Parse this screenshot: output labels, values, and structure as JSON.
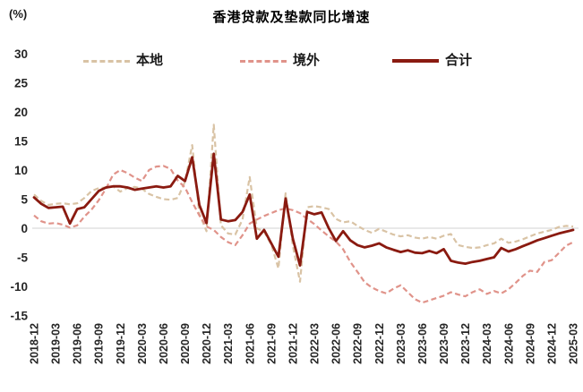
{
  "chart_data": {
    "type": "line",
    "title": "香港贷款及垫款同比增速",
    "unit_label": "(%)",
    "xlabel": "",
    "ylabel": "",
    "ylim": [
      -15,
      30
    ],
    "yticks": [
      30,
      25,
      20,
      15,
      10,
      5,
      0,
      -5,
      -10,
      -15
    ],
    "grid": "zero-line-only",
    "legend_position": "top",
    "months_per_tick": 3,
    "x_tick_labels": [
      "2018-12",
      "2019-03",
      "2019-06",
      "2019-09",
      "2019-12",
      "2020-03",
      "2020-06",
      "2020-09",
      "2020-12",
      "2021-03",
      "2021-06",
      "2021-09",
      "2021-12",
      "2022-03",
      "2022-06",
      "2022-09",
      "2022-12",
      "2023-03",
      "2023-06",
      "2023-09",
      "2023-12",
      "2024-03",
      "2024-06",
      "2024-09",
      "2024-12",
      "2025-03"
    ],
    "series": [
      {
        "name": "本地",
        "style": "dashed",
        "color": "#d9c3a5",
        "values": [
          5.8,
          4.7,
          4.0,
          4.2,
          4.3,
          4.1,
          4.3,
          5.2,
          6.4,
          6.9,
          7.0,
          7.2,
          6.3,
          6.9,
          7.1,
          6.8,
          5.9,
          5.4,
          5.0,
          4.9,
          5.2,
          8.0,
          14.3,
          2.5,
          -0.5,
          17.8,
          0.5,
          -0.9,
          -1.1,
          1.5,
          8.8,
          0.0,
          -0.6,
          -2.8,
          -6.9,
          6.0,
          -3.0,
          -9.2,
          3.6,
          3.8,
          3.6,
          3.3,
          1.6,
          1.0,
          1.2,
          0.4,
          -0.3,
          -0.8,
          -0.1,
          -0.6,
          -1.1,
          -1.4,
          -1.2,
          -1.6,
          -1.8,
          -1.5,
          -1.8,
          -1.3,
          -1.0,
          -2.9,
          -3.2,
          -3.4,
          -3.3,
          -2.9,
          -2.6,
          -1.8,
          -2.5,
          -2.3,
          -1.9,
          -1.4,
          -0.9,
          -0.6,
          -0.3,
          0.2,
          0.4,
          0.3
        ]
      },
      {
        "name": "境外",
        "style": "dashed",
        "color": "#e0938a",
        "values": [
          2.2,
          1.2,
          0.8,
          0.9,
          0.6,
          0.1,
          0.5,
          2.0,
          3.2,
          4.8,
          6.8,
          9.2,
          10.0,
          9.5,
          8.7,
          8.1,
          10.0,
          10.6,
          10.7,
          10.2,
          8.2,
          7.0,
          4.5,
          2.2,
          0.3,
          -0.3,
          -1.5,
          -2.4,
          -2.9,
          -1.2,
          0.8,
          1.5,
          2.1,
          2.6,
          3.1,
          3.4,
          3.1,
          2.6,
          1.6,
          0.7,
          -0.4,
          -1.4,
          -2.3,
          -3.6,
          -5.8,
          -7.5,
          -9.3,
          -10.2,
          -10.8,
          -11.2,
          -10.4,
          -9.8,
          -11.0,
          -12.2,
          -12.8,
          -12.4,
          -12.0,
          -11.6,
          -11.0,
          -11.4,
          -11.7,
          -11.0,
          -10.5,
          -11.3,
          -10.8,
          -11.2,
          -10.5,
          -9.4,
          -8.2,
          -7.3,
          -7.5,
          -5.8,
          -5.5,
          -4.3,
          -3.0,
          -2.4
        ]
      },
      {
        "name": "合计",
        "style": "solid",
        "color": "#8a1a10",
        "values": [
          5.3,
          4.2,
          3.5,
          3.6,
          3.7,
          0.8,
          3.3,
          3.6,
          5.0,
          6.4,
          7.0,
          7.2,
          7.2,
          7.0,
          6.6,
          6.8,
          7.0,
          7.2,
          7.0,
          7.2,
          9.0,
          8.1,
          12.2,
          4.0,
          0.9,
          12.8,
          1.5,
          1.2,
          1.4,
          2.8,
          5.8,
          -1.8,
          -0.3,
          -2.6,
          -4.9,
          5.1,
          -1.8,
          -6.4,
          2.8,
          2.4,
          2.7,
          0.0,
          -2.2,
          -0.5,
          -2.1,
          -2.9,
          -3.3,
          -3.0,
          -2.6,
          -3.3,
          -3.7,
          -4.1,
          -3.8,
          -4.2,
          -4.3,
          -3.9,
          -4.3,
          -3.6,
          -5.6,
          -5.9,
          -6.1,
          -5.8,
          -5.6,
          -5.3,
          -5.0,
          -3.4,
          -4.0,
          -3.6,
          -3.1,
          -2.6,
          -2.1,
          -1.7,
          -1.3,
          -0.9,
          -0.6,
          -0.3
        ]
      }
    ],
    "colors": {
      "zero_line": "#d9d9d9",
      "tick_text": "#262626",
      "title_text": "#000000"
    }
  }
}
